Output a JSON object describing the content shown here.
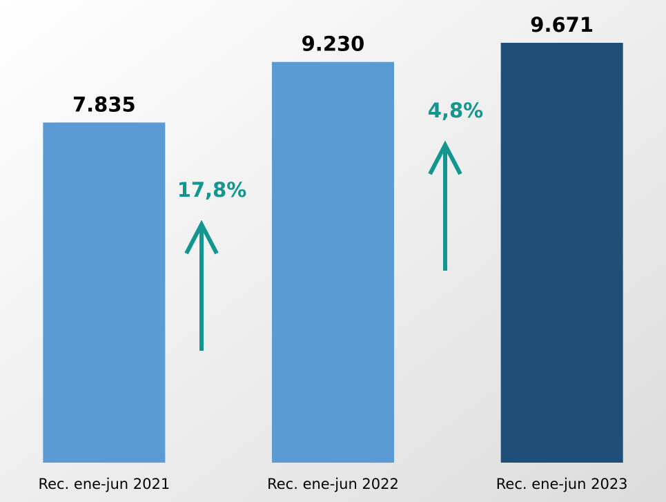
{
  "chart_data": {
    "type": "bar",
    "categories": [
      "Rec. ene-jun 2021",
      "Rec. ene-jun 2022",
      "Rec. ene-jun 2023"
    ],
    "values": [
      7835,
      9230,
      9671
    ],
    "value_labels": [
      "7.835",
      "9.230",
      "9.671"
    ],
    "colors": [
      "#5b9bd5",
      "#5b9bd5",
      "#1f4e79"
    ],
    "annotations": [
      {
        "text": "17,8%",
        "color": "#12968f"
      },
      {
        "text": "4,8%",
        "color": "#12968f"
      }
    ]
  }
}
